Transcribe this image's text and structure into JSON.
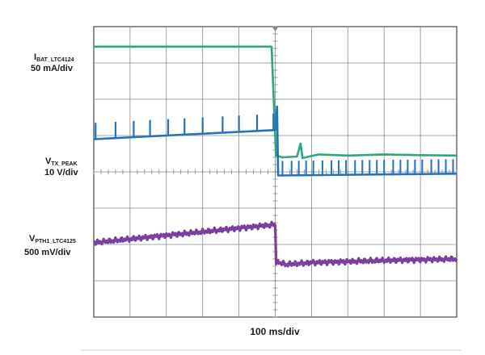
{
  "chart_data": {
    "type": "line",
    "title": "",
    "xlabel": "100 ms/div",
    "grid": true,
    "divisions": {
      "x": 10,
      "y": 8
    },
    "x_range_divs": [
      0,
      10
    ],
    "channels": [
      {
        "name_main": "I",
        "name_sub": "BAT_LTC4124",
        "scale": "50 mA/div",
        "color": "#2ca87a",
        "x": [
          0,
          4.9,
          5.02,
          5.2,
          5.6,
          5.7,
          5.75,
          6.2,
          7.0,
          8.0,
          9.0,
          10.0
        ],
        "y": [
          7.45,
          7.45,
          4.45,
          4.4,
          4.42,
          4.78,
          4.38,
          4.48,
          4.45,
          4.48,
          4.46,
          4.45
        ]
      },
      {
        "name_main": "V",
        "name_sub": "TX_PEAK",
        "scale": "10 V/div",
        "color": "#2472b8",
        "baseline": {
          "x": [
            0,
            5.0,
            5.0,
            10.0
          ],
          "y": [
            4.9,
            5.15,
            3.9,
            3.95
          ]
        },
        "spikes_before": {
          "x": [
            0.05,
            0.6,
            1.1,
            1.55,
            2.05,
            2.5,
            3.0,
            3.55,
            4.0,
            4.5,
            4.95
          ],
          "height": 0.45
        },
        "step_spike": {
          "x": 5.05,
          "y": 5.8
        },
        "spikes_after": {
          "x": [
            5.2,
            5.45,
            5.65,
            5.85,
            6.05,
            6.3,
            6.55,
            6.75,
            6.95,
            7.2,
            7.4,
            7.6,
            7.8,
            8.0,
            8.25,
            8.45,
            8.65,
            8.85,
            9.05,
            9.3,
            9.5,
            9.7,
            9.9
          ],
          "height": 0.4
        }
      },
      {
        "name_main": "V",
        "name_sub": "PTH1_LTC4125",
        "scale": "500 mV/div",
        "color": "#7b3fa0",
        "x": [
          0,
          1.0,
          2.0,
          3.0,
          4.0,
          5.0,
          5.02,
          5.3,
          6.0,
          7.0,
          8.0,
          9.0,
          10.0
        ],
        "y": [
          2.05,
          2.15,
          2.25,
          2.35,
          2.45,
          2.55,
          1.52,
          1.45,
          1.5,
          1.53,
          1.56,
          1.58,
          1.6
        ],
        "ripple_amplitude": 0.05
      }
    ]
  }
}
